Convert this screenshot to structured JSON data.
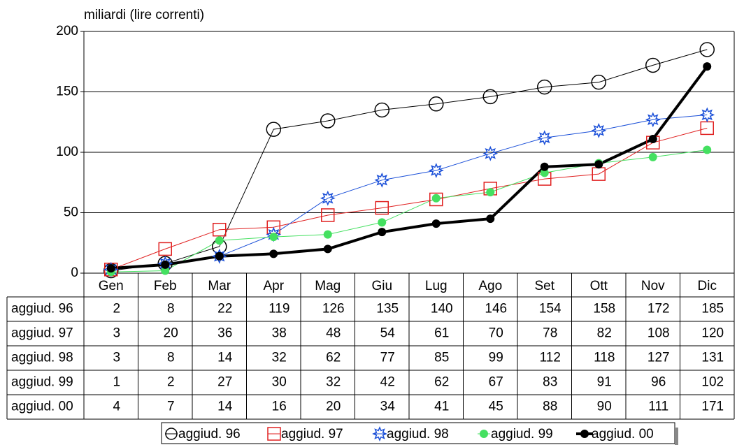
{
  "chart_data": {
    "type": "line",
    "subtitle": "miliardi (lire correnti)",
    "categories": [
      "Gen",
      "Feb",
      "Mar",
      "Apr",
      "Mag",
      "Giu",
      "Lug",
      "Ago",
      "Set",
      "Ott",
      "Nov",
      "Dic"
    ],
    "ylim": [
      0,
      200
    ],
    "yticks": [
      0,
      50,
      100,
      150,
      200
    ],
    "grid": true,
    "series": [
      {
        "name": "aggiud. 96",
        "color": "#000000",
        "marker": "open-circle",
        "values": [
          2,
          8,
          22,
          119,
          126,
          135,
          140,
          146,
          154,
          158,
          172,
          185
        ]
      },
      {
        "name": "aggiud. 97",
        "color": "#e02020",
        "marker": "open-square",
        "values": [
          3,
          20,
          36,
          38,
          48,
          54,
          61,
          70,
          78,
          82,
          108,
          120
        ]
      },
      {
        "name": "aggiud. 98",
        "color": "#1a4fd8",
        "marker": "sun",
        "values": [
          3,
          8,
          14,
          32,
          62,
          77,
          85,
          99,
          112,
          118,
          127,
          131
        ]
      },
      {
        "name": "aggiud. 99",
        "color": "#44e060",
        "marker": "filled-circle",
        "values": [
          1,
          2,
          27,
          30,
          32,
          42,
          62,
          67,
          83,
          91,
          96,
          102
        ]
      },
      {
        "name": "aggiud. 00",
        "color": "#000000",
        "marker": "filled-circle-thick",
        "values": [
          4,
          7,
          14,
          16,
          20,
          34,
          41,
          45,
          88,
          90,
          111,
          171
        ]
      }
    ]
  }
}
